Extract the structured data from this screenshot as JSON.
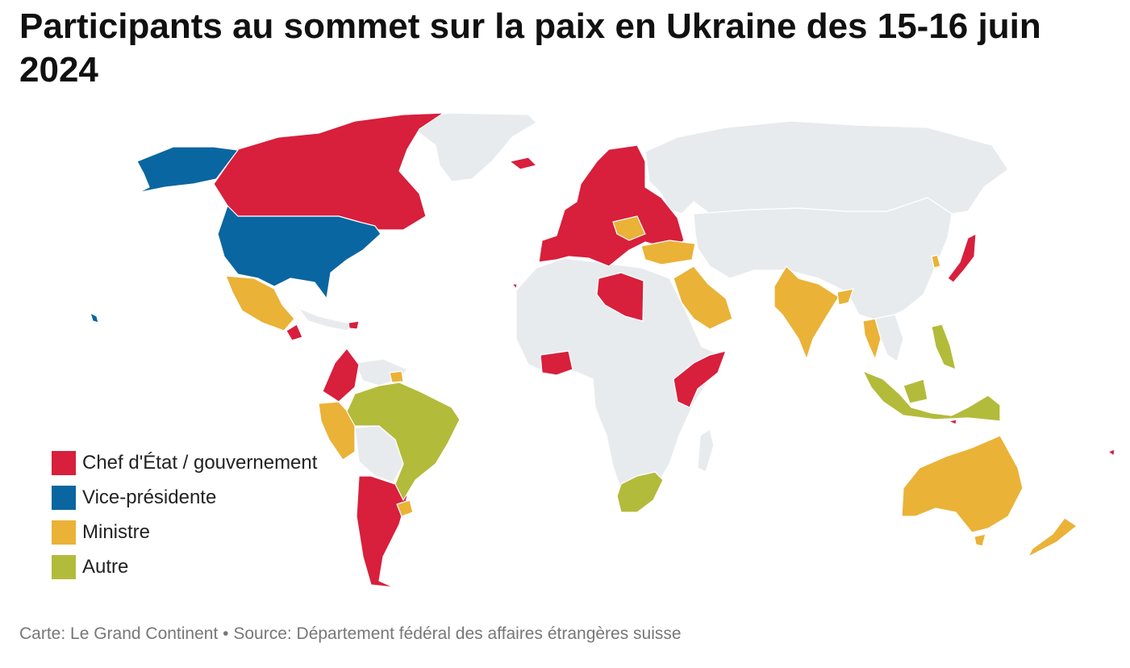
{
  "title": "Participants au sommet sur la paix en Ukraine des 15-16 juin 2024",
  "footer": "Carte: Le Grand Continent • Source: Département fédéral des affaires étrangères suisse",
  "colors": {
    "chef": "#d81f3c",
    "vice": "#0a66a0",
    "ministre": "#eab237",
    "autre": "#b3bb3b",
    "non_participant": "#e8ebee"
  },
  "legend": [
    {
      "key": "chef",
      "label": "Chef d'État / gouvernement"
    },
    {
      "key": "vice",
      "label": "Vice-présidente"
    },
    {
      "key": "ministre",
      "label": "Ministre"
    },
    {
      "key": "autre",
      "label": "Autre"
    }
  ]
}
